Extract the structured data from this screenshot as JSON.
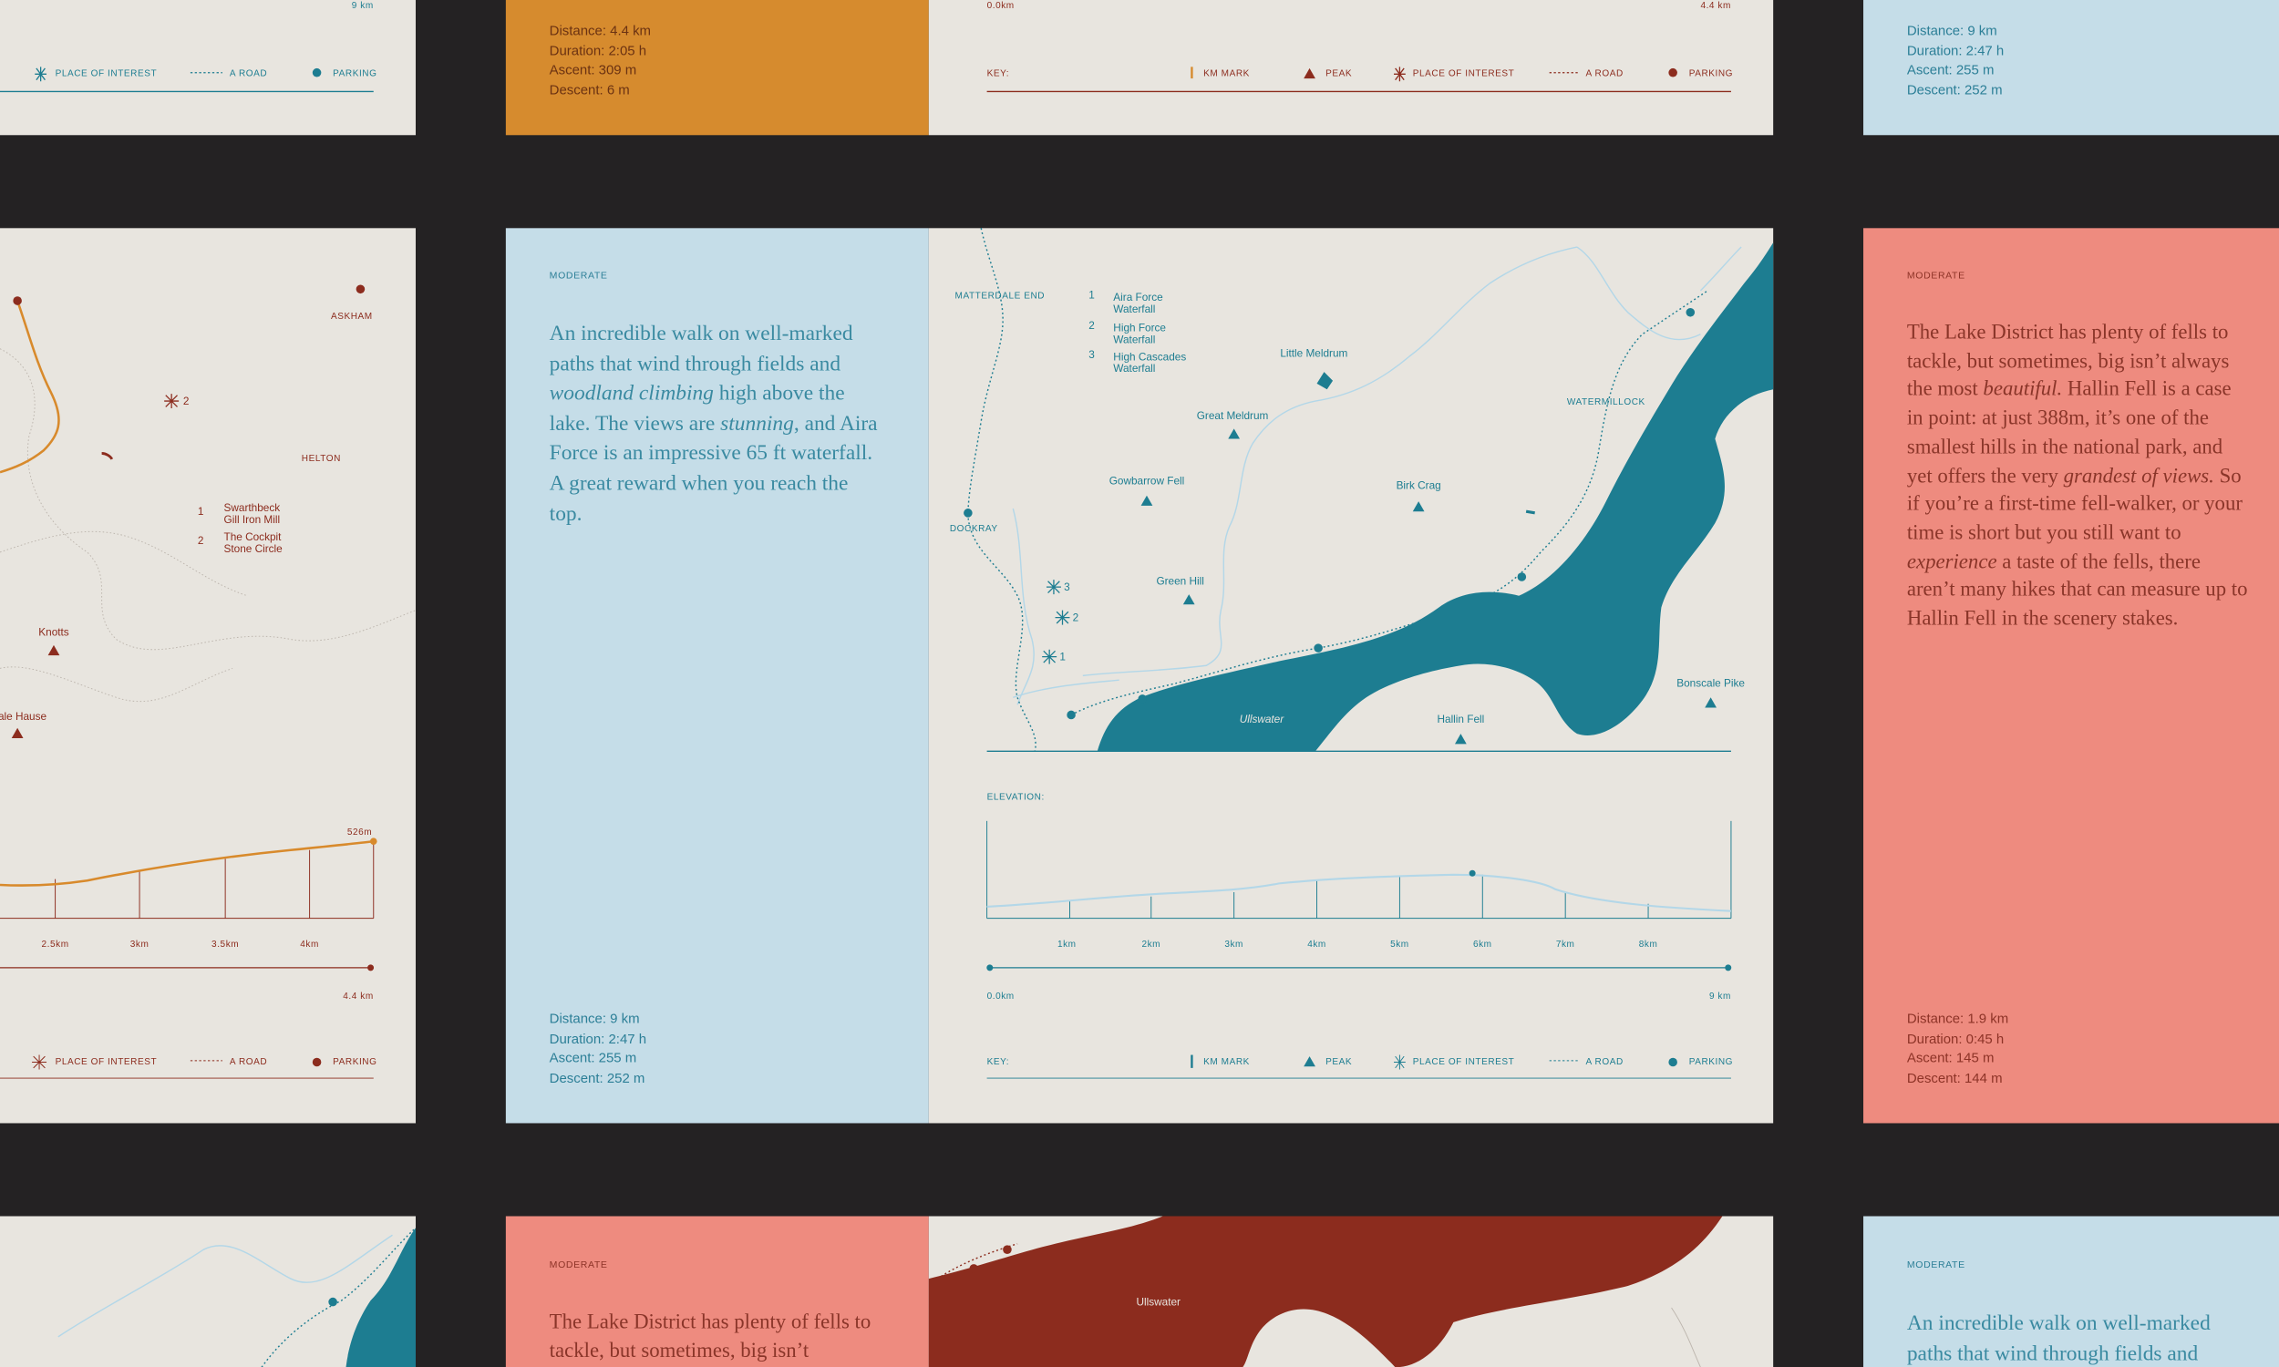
{
  "top_row": {
    "left_card": {
      "end_distance": "9 km",
      "key": [
        "PLACE OF INTEREST",
        "A ROAD",
        "PARKING"
      ]
    },
    "orange_card": {
      "stats": [
        "Distance: 4.4 km",
        "Duration: 2:05 h",
        "Ascent: 309 m",
        "Descent: 6 m"
      ]
    },
    "map_card": {
      "start_distance": "0.0km",
      "end_distance": "4.4 km",
      "key_title": "KEY:",
      "key": [
        "KM MARK",
        "PEAK",
        "PLACE OF INTEREST",
        "A ROAD",
        "PARKING"
      ]
    },
    "blue_card": {
      "stats": [
        "Distance: 9 km",
        "Duration: 2:47 h",
        "Ascent: 255 m",
        "Descent: 252 m"
      ]
    }
  },
  "middle_row": {
    "left_card": {
      "places": [
        "ASKHAM",
        "HELTON",
        "Knotts",
        "ale Hause"
      ],
      "poi_marker": "2",
      "poi_list": [
        {
          "number": "1",
          "name": "Swarthbeck Gill Iron Mill"
        },
        {
          "number": "2",
          "name": "The Cockpit Stone Circle"
        }
      ],
      "summit": "526m",
      "distance_ticks": [
        "2.5km",
        "3km",
        "3.5km",
        "4km"
      ],
      "end_distance": "4.4 km",
      "key": [
        "PLACE OF INTEREST",
        "A ROAD",
        "PARKING"
      ]
    },
    "blue_card": {
      "difficulty": "MODERATE",
      "description": [
        {
          "text": "An incredible walk on well-marked paths that wind through fields and ",
          "italic": false
        },
        {
          "text": "woodland climbing",
          "italic": true
        },
        {
          "text": " high above the lake. The views are ",
          "italic": false
        },
        {
          "text": "stunning",
          "italic": true
        },
        {
          "text": ", and Aira Force is an impressive 65 ft waterfall. A great reward when you reach the top.",
          "italic": false
        }
      ],
      "stats": [
        "Distance: 9 km",
        "Duration: 2:47 h",
        "Ascent: 255 m",
        "Descent: 252 m"
      ]
    },
    "map_card": {
      "places": [
        "MATTERDALE END",
        "Little Meldrum",
        "Great Meldrum",
        "WATERMILLOCK",
        "Gowbarrow Fell",
        "Birk Crag",
        "DOCKRAY",
        "Green Hill",
        "Ullswater",
        "Hallin Fell",
        "Bonscale Pike"
      ],
      "poi_markers": [
        "3",
        "2",
        "1"
      ],
      "poi_list": [
        {
          "number": "1",
          "name": "Aira Force Waterfall"
        },
        {
          "number": "2",
          "name": "High Force Waterfall"
        },
        {
          "number": "3",
          "name": "High Cascades Waterfall"
        }
      ],
      "elevation_title": "ELEVATION:",
      "distance_ticks": [
        "1km",
        "2km",
        "3km",
        "4km",
        "5km",
        "6km",
        "7km",
        "8km"
      ],
      "start_distance": "0.0km",
      "end_distance": "9 km",
      "key_title": "KEY:",
      "key": [
        "KM MARK",
        "PEAK",
        "PLACE OF INTEREST",
        "A ROAD",
        "PARKING"
      ]
    },
    "coral_card": {
      "difficulty": "MODERATE",
      "description": [
        {
          "text": "The Lake District has plenty of fells to tackle, but sometimes, big isn’t always the most ",
          "italic": false
        },
        {
          "text": "beautiful.",
          "italic": true
        },
        {
          "text": " Hallin Fell is a case in point: at just 388m, it’s one of the smallest hills in the national park, and yet offers the very ",
          "italic": false
        },
        {
          "text": "grandest of views.",
          "italic": true
        },
        {
          "text": " So if you’re a first-time fell-walker, or your time is short but you still want to ",
          "italic": false
        },
        {
          "text": "experience",
          "italic": true
        },
        {
          "text": " a taste of the fells, there aren’t many hikes that can measure up to Hallin Fell in the scenery stakes.",
          "italic": false
        }
      ],
      "stats": [
        "Distance: 1.9 km",
        "Duration: 0:45 h",
        "Ascent: 145 m",
        "Descent: 144 m"
      ]
    }
  },
  "bottom_row": {
    "coral_card": {
      "difficulty": "MODERATE",
      "description": "The Lake District has plenty of fells to tackle, but sometimes, big isn’t"
    },
    "map_card": {
      "places": [
        "Ullswater"
      ]
    },
    "blue_card": {
      "difficulty": "MODERATE",
      "description": "An incredible walk on well-marked paths that wind through fields and"
    }
  }
}
